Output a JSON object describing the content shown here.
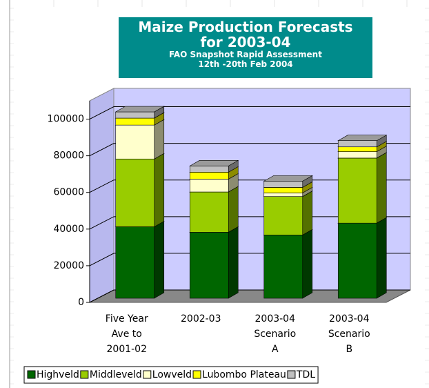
{
  "chart_data": {
    "type": "bar3d_stacked",
    "title": [
      "Maize Production Forecasts",
      "for 2003-04"
    ],
    "subtitle": [
      "FAO Snapshot Rapid Assessment",
      "12th -20th Feb 2004"
    ],
    "categories": [
      "Five Year Ave to 2001-02",
      "2002-03",
      "2003-04 Scenario A",
      "2003-04 Scenario B"
    ],
    "series": [
      {
        "name": "Highveld",
        "color": "#006600",
        "values": [
          39000,
          36000,
          34500,
          41000
        ]
      },
      {
        "name": "Middleveld",
        "color": "#99cc00",
        "values": [
          37000,
          22000,
          21000,
          35500
        ]
      },
      {
        "name": "Lowveld",
        "color": "#ffffcc",
        "values": [
          18500,
          7000,
          2000,
          3500
        ]
      },
      {
        "name": "Lubombo Plateau",
        "color": "#ffff00",
        "values": [
          3800,
          3800,
          3000,
          2600
        ]
      },
      {
        "name": "TDL",
        "color": "#c0c0c0",
        "values": [
          3400,
          3400,
          3400,
          3400
        ]
      }
    ],
    "ylim": [
      0,
      110000
    ],
    "yticks": [
      0,
      20000,
      40000,
      60000,
      80000,
      100000
    ],
    "grid": true,
    "legend": "bottom"
  }
}
